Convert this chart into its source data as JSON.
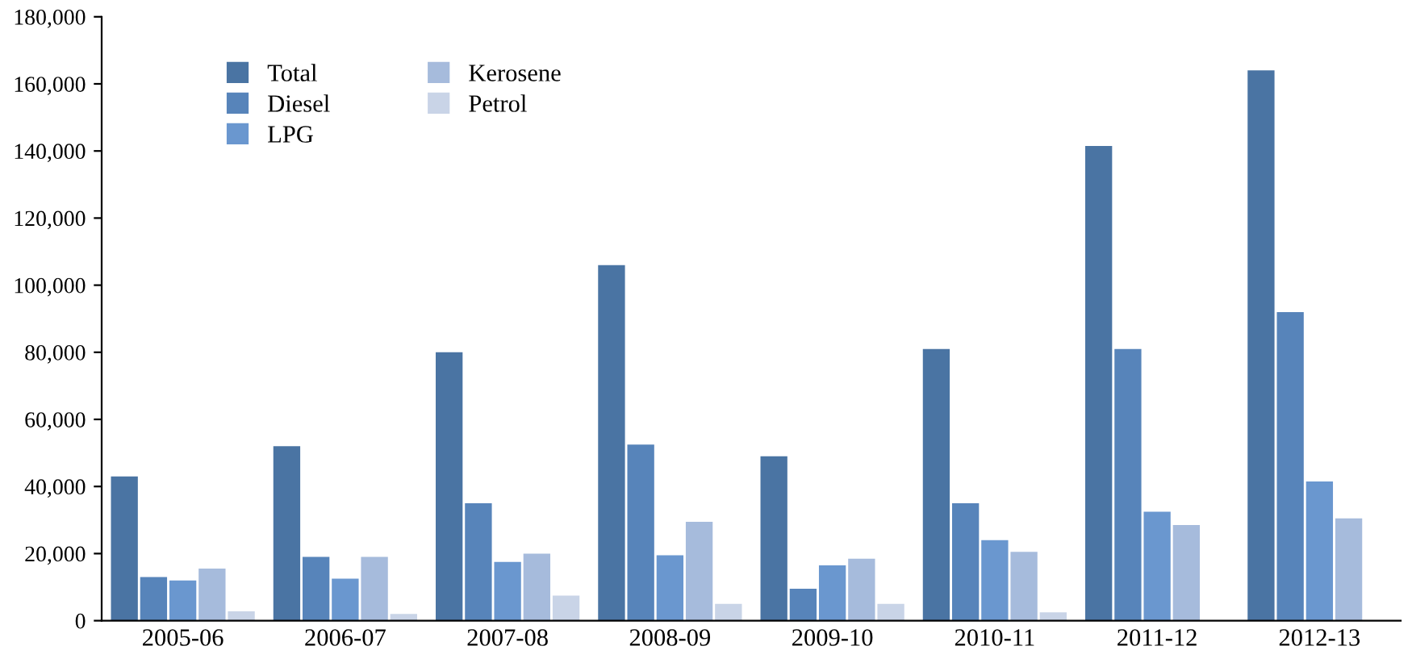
{
  "chart_data": {
    "type": "bar",
    "categories": [
      "2005-06",
      "2006-07",
      "2007-08",
      "2008-09",
      "2009-10",
      "2010-11",
      "2011-12",
      "2012-13"
    ],
    "series": [
      {
        "name": "Total",
        "color": "#4a74a3",
        "values": [
          43000,
          52000,
          80000,
          106000,
          49000,
          81000,
          141500,
          164000
        ]
      },
      {
        "name": "Diesel",
        "color": "#5784ba",
        "values": [
          13000,
          19000,
          35000,
          52500,
          9500,
          35000,
          81000,
          92000
        ]
      },
      {
        "name": "LPG",
        "color": "#6a97cf",
        "values": [
          12000,
          12500,
          17500,
          19500,
          16500,
          24000,
          32500,
          41500
        ]
      },
      {
        "name": "Kerosene",
        "color": "#a6bbdc",
        "values": [
          15500,
          19000,
          20000,
          29500,
          18500,
          20500,
          28500,
          30500
        ]
      },
      {
        "name": "Petrol",
        "color": "#c9d4e7",
        "values": [
          2800,
          2000,
          7500,
          5000,
          5000,
          2500,
          null,
          null
        ]
      }
    ],
    "ylim": [
      0,
      180000
    ],
    "yticks": [
      {
        "value": 0,
        "label": "0"
      },
      {
        "value": 20000,
        "label": "20,000"
      },
      {
        "value": 40000,
        "label": "40,000"
      },
      {
        "value": 60000,
        "label": "60,000"
      },
      {
        "value": 80000,
        "label": "80,000"
      },
      {
        "value": 100000,
        "label": "100,000"
      },
      {
        "value": 120000,
        "label": "120,000"
      },
      {
        "value": 140000,
        "label": "140,000"
      },
      {
        "value": 160000,
        "label": "160,000"
      },
      {
        "value": 180000,
        "label": "180,000"
      }
    ],
    "grid": false,
    "legend": "top left"
  }
}
